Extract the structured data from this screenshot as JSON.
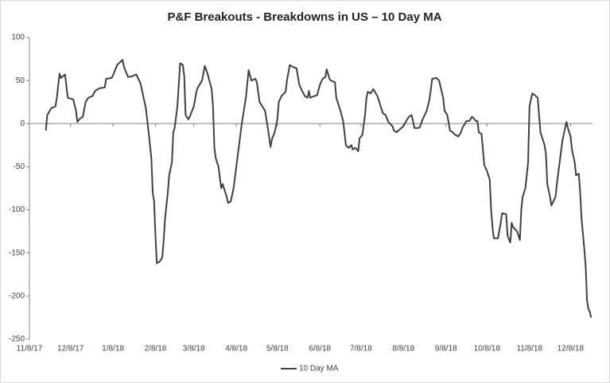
{
  "chart_data": {
    "type": "line",
    "title": "P&F Breakouts - Breakdowns in US – 10 Day MA",
    "x": [
      "2017-11-20",
      "2017-11-21",
      "2017-11-24",
      "2017-11-27",
      "2017-11-28",
      "2017-11-30",
      "2017-12-01",
      "2017-12-04",
      "2017-12-06",
      "2017-12-10",
      "2017-12-12",
      "2017-12-13",
      "2017-12-15",
      "2017-12-17",
      "2017-12-19",
      "2017-12-21",
      "2017-12-24",
      "2017-12-26",
      "2017-12-29",
      "2018-01-02",
      "2018-01-03",
      "2018-01-07",
      "2018-01-08",
      "2018-01-11",
      "2018-01-15",
      "2018-01-16",
      "2018-01-19",
      "2018-01-22",
      "2018-01-25",
      "2018-01-28",
      "2018-01-29",
      "2018-01-31",
      "2018-02-01",
      "2018-02-03",
      "2018-02-05",
      "2018-02-06",
      "2018-02-07",
      "2018-02-08",
      "2018-02-09",
      "2018-02-11",
      "2018-02-13",
      "2018-02-14",
      "2018-02-15",
      "2018-02-17",
      "2018-02-18",
      "2018-02-20",
      "2018-02-21",
      "2018-02-22",
      "2018-02-24",
      "2018-02-25",
      "2018-02-26",
      "2018-02-28",
      "2018-03-01",
      "2018-03-02",
      "2018-03-04",
      "2018-03-05",
      "2018-03-08",
      "2018-03-10",
      "2018-03-11",
      "2018-03-14",
      "2018-03-16",
      "2018-03-18",
      "2018-03-21",
      "2018-03-22",
      "2018-03-23",
      "2018-03-24",
      "2018-03-26",
      "2018-03-28",
      "2018-03-29",
      "2018-04-01",
      "2018-04-02",
      "2018-04-04",
      "2018-04-06",
      "2018-04-08",
      "2018-04-10",
      "2018-04-12",
      "2018-04-13",
      "2018-04-15",
      "2018-04-17",
      "2018-04-19",
      "2018-04-22",
      "2018-04-23",
      "2018-04-25",
      "2018-04-27",
      "2018-04-29",
      "2018-05-01",
      "2018-05-03",
      "2018-05-04",
      "2018-05-06",
      "2018-05-08",
      "2018-05-09",
      "2018-05-11",
      "2018-05-14",
      "2018-05-15",
      "2018-05-17",
      "2018-05-19",
      "2018-05-22",
      "2018-05-24",
      "2018-05-26",
      "2018-05-28",
      "2018-05-30",
      "2018-05-31",
      "2018-06-01",
      "2018-06-04",
      "2018-06-06",
      "2018-06-08",
      "2018-06-10",
      "2018-06-12",
      "2018-06-13",
      "2018-06-15",
      "2018-06-16",
      "2018-06-19",
      "2018-06-20",
      "2018-06-23",
      "2018-06-25",
      "2018-06-27",
      "2018-06-29",
      "2018-07-01",
      "2018-07-02",
      "2018-07-04",
      "2018-07-06",
      "2018-07-07",
      "2018-07-09",
      "2018-07-11",
      "2018-07-12",
      "2018-07-13",
      "2018-07-15",
      "2018-07-17",
      "2018-07-20",
      "2018-07-22",
      "2018-07-24",
      "2018-07-26",
      "2018-07-28",
      "2018-07-31",
      "2018-08-01",
      "2018-08-03",
      "2018-08-05",
      "2018-08-08",
      "2018-08-10",
      "2018-08-12",
      "2018-08-14",
      "2018-08-16",
      "2018-08-19",
      "2018-08-20",
      "2018-08-22",
      "2018-08-25",
      "2018-08-27",
      "2018-08-29",
      "2018-09-01",
      "2018-09-03",
      "2018-09-06",
      "2018-09-07",
      "2018-09-09",
      "2018-09-11",
      "2018-09-13",
      "2018-09-14",
      "2018-09-17",
      "2018-09-19",
      "2018-09-20",
      "2018-09-23",
      "2018-09-25",
      "2018-09-27",
      "2018-09-30",
      "2018-10-01",
      "2018-10-02",
      "2018-10-04",
      "2018-10-06",
      "2018-10-08",
      "2018-10-10",
      "2018-10-11",
      "2018-10-12",
      "2018-10-13",
      "2018-10-16",
      "2018-10-18",
      "2018-10-19",
      "2018-10-22",
      "2018-10-23",
      "2018-10-25",
      "2018-10-26",
      "2018-10-27",
      "2018-10-30",
      "2018-11-01",
      "2018-11-02",
      "2018-11-03",
      "2018-11-05",
      "2018-11-07",
      "2018-11-08",
      "2018-11-10",
      "2018-11-12",
      "2018-11-14",
      "2018-11-16",
      "2018-11-19",
      "2018-11-20",
      "2018-11-21",
      "2018-11-23",
      "2018-11-24",
      "2018-11-27",
      "2018-11-28",
      "2018-11-30",
      "2018-12-02",
      "2018-12-04",
      "2018-12-05",
      "2018-12-06",
      "2018-12-08",
      "2018-12-09",
      "2018-12-11",
      "2018-12-12",
      "2018-12-14",
      "2018-12-15",
      "2018-12-16",
      "2018-12-18",
      "2018-12-19",
      "2018-12-20",
      "2018-12-21",
      "2018-12-22",
      "2018-12-23"
    ],
    "series": [
      {
        "name": "10 Day MA",
        "color": "#404040",
        "values": [
          -8,
          10,
          18,
          20,
          30,
          58,
          53,
          57,
          30,
          28,
          15,
          2,
          6,
          8,
          25,
          30,
          32,
          38,
          41,
          42,
          52,
          53,
          56,
          68,
          74,
          66,
          54,
          55,
          57,
          47,
          40,
          25,
          18,
          -10,
          -40,
          -80,
          -90,
          -130,
          -162,
          -160,
          -155,
          -135,
          -110,
          -80,
          -60,
          -45,
          -10,
          -5,
          20,
          45,
          70,
          68,
          55,
          10,
          5,
          8,
          20,
          38,
          42,
          50,
          67,
          58,
          40,
          20,
          -28,
          -40,
          -50,
          -75,
          -70,
          -85,
          -92,
          -90,
          -75,
          -50,
          -25,
          0,
          10,
          30,
          62,
          50,
          52,
          48,
          25,
          20,
          15,
          -5,
          -27,
          -18,
          -10,
          5,
          25,
          32,
          37,
          50,
          68,
          66,
          64,
          45,
          38,
          32,
          30,
          38,
          30,
          32,
          33,
          45,
          52,
          54,
          63,
          52,
          50,
          48,
          30,
          15,
          3,
          -25,
          -28,
          -25,
          -30,
          -28,
          -32,
          -17,
          -13,
          10,
          30,
          37,
          35,
          40,
          32,
          22,
          12,
          10,
          2,
          -3,
          -8,
          -10,
          -7,
          -3,
          3,
          8,
          10,
          -5,
          -5,
          -4,
          5,
          15,
          28,
          52,
          53,
          50,
          30,
          15,
          10,
          -8,
          -10,
          -12,
          -15,
          -10,
          -5,
          3,
          3,
          8,
          3,
          3,
          -10,
          -12,
          -48,
          -55,
          -65,
          -100,
          -120,
          -133,
          -133,
          -115,
          -104,
          -105,
          -130,
          -138,
          -115,
          -120,
          -125,
          -135,
          -100,
          -85,
          -75,
          -45,
          20,
          35,
          33,
          30,
          -10,
          -25,
          -35,
          -70,
          -85,
          -95,
          -85,
          -70,
          -45,
          -20,
          -5,
          2,
          -5,
          -15,
          -30,
          -45,
          -60,
          -58,
          -80,
          -110,
          -145,
          -165,
          -205,
          -215,
          -218,
          -225
        ]
      }
    ],
    "xlim": [
      "2017-11-08",
      "2018-12-24"
    ],
    "xticks": [
      {
        "value": "2017-11-08",
        "label": "11/8/17"
      },
      {
        "value": "2017-12-08",
        "label": "12/8/17"
      },
      {
        "value": "2018-01-08",
        "label": "1/8/18"
      },
      {
        "value": "2018-02-08",
        "label": "2/8/18"
      },
      {
        "value": "2018-03-08",
        "label": "3/8/18"
      },
      {
        "value": "2018-04-08",
        "label": "4/8/18"
      },
      {
        "value": "2018-05-08",
        "label": "5/8/18"
      },
      {
        "value": "2018-06-08",
        "label": "6/8/18"
      },
      {
        "value": "2018-07-08",
        "label": "7/8/18"
      },
      {
        "value": "2018-08-08",
        "label": "8/8/18"
      },
      {
        "value": "2018-09-08",
        "label": "9/8/18"
      },
      {
        "value": "2018-10-08",
        "label": "10/8/18"
      },
      {
        "value": "2018-11-08",
        "label": "11/8/18"
      },
      {
        "value": "2018-12-08",
        "label": "12/8/18"
      }
    ],
    "ylim": [
      -250,
      100
    ],
    "yticks": [
      -250,
      -200,
      -150,
      -100,
      -50,
      0,
      50,
      100
    ],
    "legend": "bottom"
  }
}
